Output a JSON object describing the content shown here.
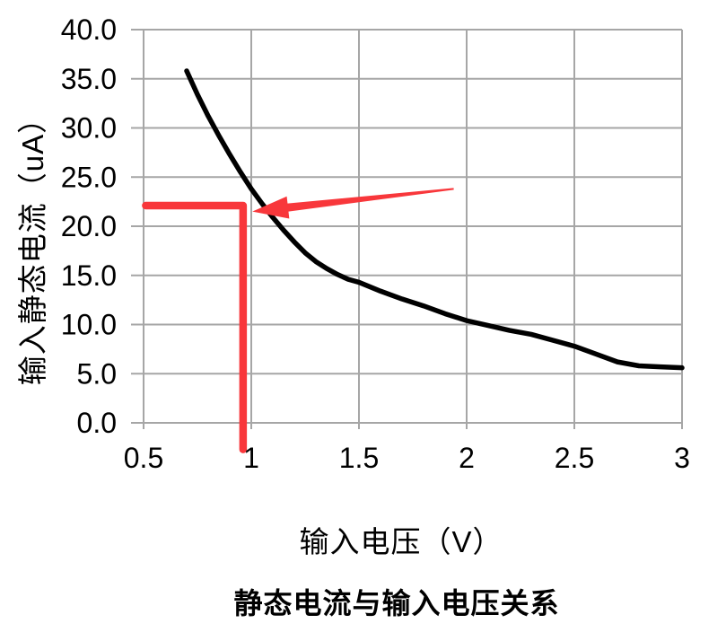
{
  "page": {
    "background": "#ffffff"
  },
  "chart_data": {
    "type": "line",
    "title": "静态电流与输入电压关系",
    "xlabel": "输入电压（V）",
    "ylabel": "输入静态电流（uA）",
    "xlim": [
      0.5,
      3.0
    ],
    "ylim": [
      0.0,
      40.0
    ],
    "grid": true,
    "legend": "none",
    "grid_color": "#a6a6a6",
    "axis_color": "#a6a6a6",
    "text_color": "#000000",
    "xticks": {
      "values": [
        0.5,
        1,
        1.5,
        2,
        2.5,
        3
      ],
      "labels": [
        "0.5",
        "1",
        "1.5",
        "2",
        "2.5",
        "3"
      ]
    },
    "yticks": {
      "values": [
        0,
        5,
        10,
        15,
        20,
        25,
        30,
        35,
        40
      ],
      "labels": [
        "0.0",
        "5.0",
        "10.0",
        "15.0",
        "20.0",
        "25.0",
        "30.0",
        "35.0",
        "40.0"
      ]
    },
    "series": [
      {
        "name": "输入静态电流",
        "color": "#000000",
        "stroke_width": 5.5,
        "x": [
          0.7,
          0.75,
          0.8,
          0.85,
          0.9,
          0.95,
          1.0,
          1.05,
          1.1,
          1.15,
          1.2,
          1.25,
          1.3,
          1.35,
          1.4,
          1.45,
          1.5,
          1.6,
          1.7,
          1.8,
          1.9,
          2.0,
          2.1,
          2.2,
          2.3,
          2.4,
          2.5,
          2.6,
          2.7,
          2.8,
          2.9,
          3.0
        ],
        "y": [
          35.8,
          33.4,
          31.2,
          29.2,
          27.3,
          25.5,
          23.8,
          22.3,
          20.9,
          19.6,
          18.4,
          17.3,
          16.4,
          15.7,
          15.1,
          14.6,
          14.3,
          13.4,
          12.6,
          11.9,
          11.1,
          10.4,
          9.9,
          9.4,
          9.0,
          8.4,
          7.8,
          7.0,
          6.2,
          5.8,
          5.7,
          5.6
        ]
      }
    ],
    "annotations": [
      {
        "name": "measurement-marker-line",
        "type": "polyline",
        "color": "#f8373b",
        "stroke_width": 8.5,
        "x": [
          0.51,
          0.962,
          0.962
        ],
        "y": [
          22.1,
          22.1,
          -2.7
        ]
      },
      {
        "name": "callout-arrow",
        "type": "arrow",
        "color": "#f8373b",
        "tail": {
          "x": 1.94,
          "y": 23.8
        },
        "head": {
          "x": 1.005,
          "y": 21.5
        }
      }
    ]
  }
}
